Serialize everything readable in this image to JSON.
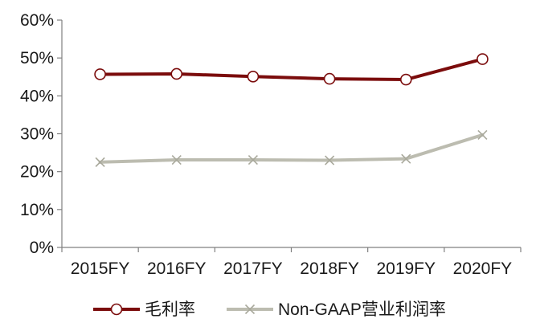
{
  "chart_data": {
    "type": "line",
    "categories": [
      "2015FY",
      "2016FY",
      "2017FY",
      "2018FY",
      "2019FY",
      "2020FY"
    ],
    "y_ticks": [
      "0%",
      "10%",
      "20%",
      "30%",
      "40%",
      "50%",
      "60%"
    ],
    "ylim": [
      0,
      60
    ],
    "grid": false,
    "legend_position": "bottom",
    "series": [
      {
        "name": "毛利率",
        "values": [
          45.7,
          45.8,
          45.1,
          44.5,
          44.3,
          49.7
        ],
        "color": "#7b0c0c",
        "marker": "open-circle"
      },
      {
        "name": "Non-GAAP营业利润率",
        "values": [
          22.5,
          23.1,
          23.1,
          23.0,
          23.4,
          29.7
        ],
        "color": "#bcbcb0",
        "marker": "x"
      }
    ]
  }
}
